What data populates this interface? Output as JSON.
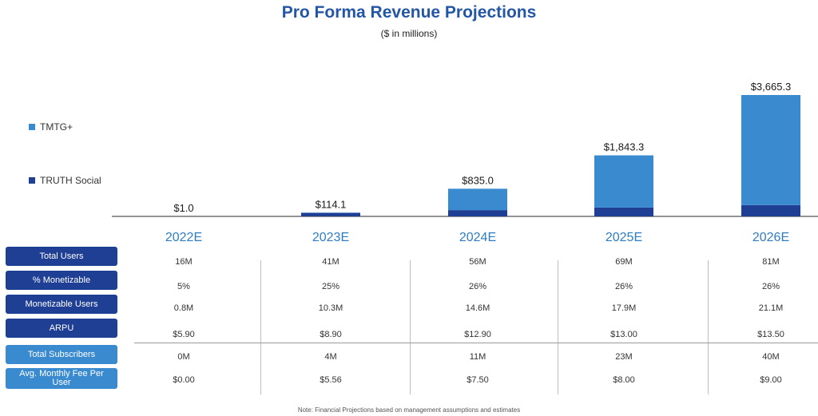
{
  "header": {
    "title": "Pro Forma Revenue Projections",
    "subtitle": "($ in millions)"
  },
  "colors": {
    "title": "#2456a6",
    "tmtg": "#3a8ad0",
    "truth": "#1f3f94",
    "year_label": "#2e7cc4",
    "label_dark": "#1f3f94",
    "label_light": "#3a8ad0"
  },
  "chart_data": {
    "type": "bar",
    "stacked": true,
    "categories": [
      "2022E",
      "2023E",
      "2024E",
      "2025E",
      "2026E"
    ],
    "series": [
      {
        "name": "TRUTH Social",
        "values": [
          1.0,
          106.0,
          190.0,
          268.0,
          342.0
        ]
      },
      {
        "name": "TMTG+",
        "values": [
          0.0,
          8.1,
          645.0,
          1575.3,
          3323.3
        ]
      }
    ],
    "totals": [
      1.0,
      114.1,
      835.0,
      1843.3,
      3665.3
    ],
    "data_labels": [
      "$1.0",
      "$114.1",
      "$835.0",
      "$1,843.3",
      "$3,665.3"
    ],
    "legend": [
      "TMTG+",
      "TRUTH Social"
    ],
    "legend_position": "left",
    "ylim": [
      0,
      3665.3
    ],
    "grid": false
  },
  "table": {
    "rows": [
      {
        "label": "Total Users",
        "style": "dark",
        "values": [
          "16M",
          "41M",
          "56M",
          "69M",
          "81M"
        ]
      },
      {
        "label": "% Monetizable",
        "style": "dark",
        "values": [
          "5%",
          "25%",
          "26%",
          "26%",
          "26%"
        ]
      },
      {
        "label": "Monetizable Users",
        "style": "dark",
        "values": [
          "0.8M",
          "10.3M",
          "14.6M",
          "17.9M",
          "21.1M"
        ]
      },
      {
        "label": "ARPU",
        "style": "dark",
        "values": [
          "$5.90",
          "$8.90",
          "$12.90",
          "$13.00",
          "$13.50"
        ]
      },
      {
        "label": "Total Subscribers",
        "style": "light",
        "values": [
          "0M",
          "4M",
          "11M",
          "23M",
          "40M"
        ]
      },
      {
        "label": "Avg. Monthly Fee Per User",
        "style": "light",
        "values": [
          "$0.00",
          "$5.56",
          "$7.50",
          "$8.00",
          "$9.00"
        ]
      }
    ]
  },
  "footer": {
    "note": "Note: Financial Projections based on management assumptions and estimates"
  }
}
